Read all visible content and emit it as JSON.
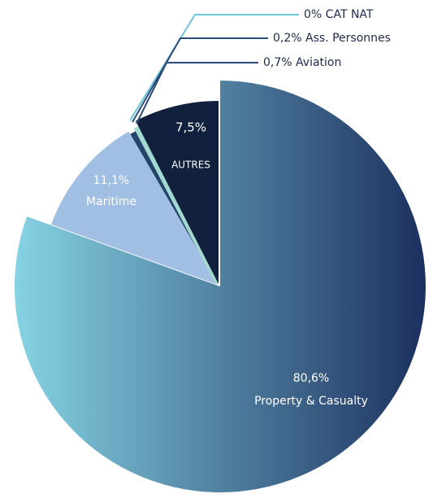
{
  "chart_data": {
    "type": "pie",
    "categories": [
      "Property & Casualty",
      "Maritime",
      "Aviation",
      "Ass. Personnes",
      "CAT NAT",
      "AUTRES"
    ],
    "values": [
      80.6,
      11.1,
      0.7,
      0.2,
      0,
      7.5
    ],
    "value_labels": [
      "80,6%",
      "11,1%",
      "0,7%",
      "0,2%",
      "0%",
      "7,5%"
    ],
    "colors": [
      "#4a7198",
      "#a0bfe3",
      "#24456a",
      "#a6d8d2",
      "#7fc9d9",
      "#11213d"
    ],
    "gradient": [
      "#86d3e3",
      "#1c305f"
    ]
  }
}
